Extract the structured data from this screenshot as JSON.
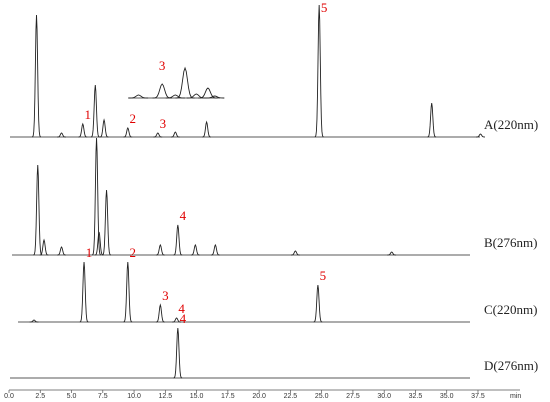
{
  "chart_data": {
    "type": "line",
    "xlim": [
      0,
      39.5
    ],
    "xticks": [
      {
        "value": 0,
        "label": "0.0"
      },
      {
        "value": 2.5,
        "label": "2.5"
      },
      {
        "value": 5,
        "label": "5.0"
      },
      {
        "value": 7.5,
        "label": "7.5"
      },
      {
        "value": 10,
        "label": "10.0"
      },
      {
        "value": 12.5,
        "label": "12.5"
      },
      {
        "value": 15,
        "label": "15.0"
      },
      {
        "value": 17.5,
        "label": "17.5"
      },
      {
        "value": 20,
        "label": "20.0"
      },
      {
        "value": 22.5,
        "label": "22.5"
      },
      {
        "value": 25,
        "label": "25.0"
      },
      {
        "value": 27.5,
        "label": "27.5"
      },
      {
        "value": 30,
        "label": "30.0"
      },
      {
        "value": 32.5,
        "label": "32.5"
      },
      {
        "value": 35,
        "label": "35.0"
      },
      {
        "value": 37.5,
        "label": "37.5"
      }
    ],
    "x_label": "min",
    "color": "#222222",
    "label_color": "#e00000",
    "series": [
      {
        "name": "A(220nm)",
        "x": [
          2.2,
          4.2,
          5.9,
          6.9,
          7.6,
          9.5,
          11.9,
          13.3,
          15.8,
          24.8,
          33.8,
          37.7
        ],
        "values": [
          122,
          4,
          13,
          52,
          17,
          9,
          4,
          5,
          15,
          132,
          34,
          3
        ],
        "peak_labels": [
          null,
          null,
          "1",
          null,
          null,
          "2",
          "3",
          null,
          null,
          "5",
          null,
          null
        ]
      },
      {
        "name": "B(276nm)",
        "x": [
          2.3,
          2.8,
          4.2,
          7.0,
          7.2,
          7.8,
          12.1,
          13.5,
          14.9,
          16.5,
          22.9,
          30.6
        ],
        "values": [
          90,
          15,
          8,
          117,
          23,
          65,
          10,
          30,
          10,
          10,
          4,
          3
        ],
        "peak_labels": [
          null,
          null,
          null,
          null,
          null,
          null,
          null,
          "4",
          null,
          null,
          null,
          null
        ]
      },
      {
        "name": "C(220nm)",
        "x": [
          2.0,
          6.0,
          9.5,
          12.1,
          13.4,
          24.7
        ],
        "values": [
          2,
          60,
          60,
          17,
          4,
          37
        ],
        "peak_labels": [
          null,
          "1",
          "2",
          "3",
          "4",
          "5"
        ]
      },
      {
        "name": "D(276nm)",
        "x": [
          13.5
        ],
        "values": [
          50
        ],
        "peak_labels": [
          "4"
        ]
      }
    ],
    "inset": {
      "xlim": [
        11,
        14.5
      ],
      "x": [
        11.4,
        12.3,
        12.8,
        13.17,
        13.6,
        14.04,
        14.3
      ],
      "values": [
        3,
        14,
        3,
        30,
        4,
        10,
        2
      ],
      "peak_labels": [
        null,
        "3",
        null,
        null,
        null,
        null,
        null
      ]
    }
  }
}
